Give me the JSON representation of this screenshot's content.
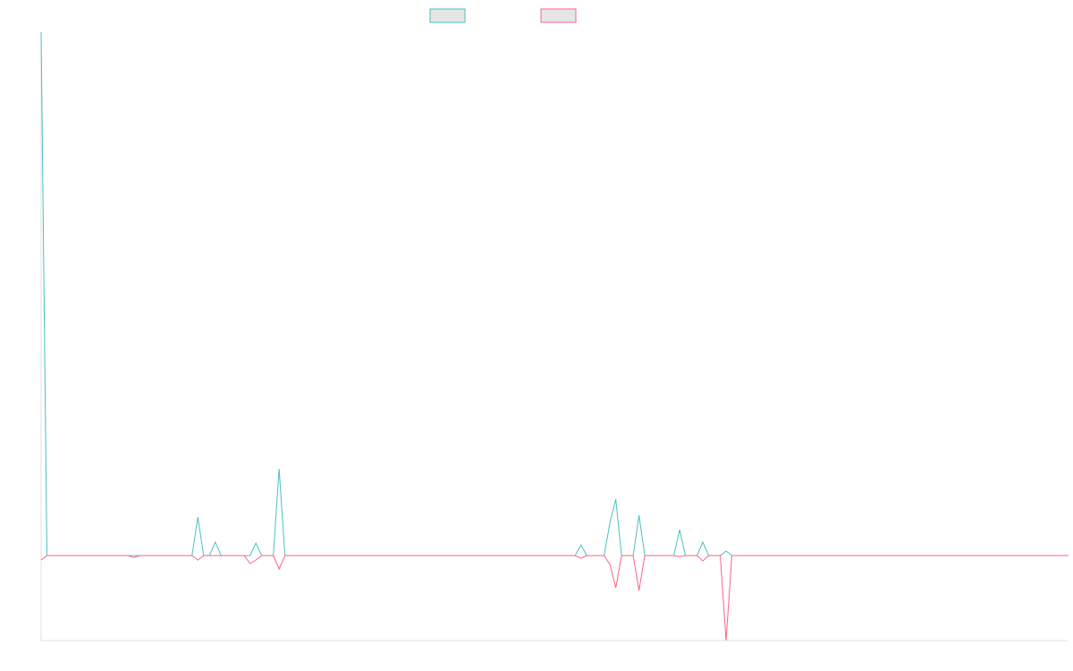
{
  "chart_data": {
    "type": "line",
    "series": [
      {
        "color": "#4bc0c0",
        "values": [
          585,
          0,
          0,
          0,
          0,
          0,
          0,
          0,
          0,
          0,
          0,
          0,
          0,
          0,
          0,
          0,
          0,
          0,
          0,
          0,
          0,
          0,
          0,
          0,
          0,
          0,
          0,
          43,
          0,
          0,
          15,
          0,
          0,
          0,
          0,
          0,
          0,
          14,
          0,
          0,
          0,
          97,
          0,
          0,
          0,
          0,
          0,
          0,
          0,
          0,
          0,
          0,
          0,
          0,
          0,
          0,
          0,
          0,
          0,
          0,
          0,
          0,
          0,
          0,
          0,
          0,
          0,
          0,
          0,
          0,
          0,
          0,
          0,
          0,
          0,
          0,
          0,
          0,
          0,
          0,
          0,
          0,
          0,
          0,
          0,
          0,
          0,
          0,
          0,
          0,
          0,
          0,
          0,
          12,
          0,
          0,
          0,
          0,
          37,
          63,
          0,
          0,
          0,
          45,
          0,
          0,
          0,
          0,
          0,
          0,
          29,
          0,
          0,
          0,
          15,
          0,
          0,
          0,
          5,
          0,
          0,
          0,
          0,
          0,
          0,
          0,
          0,
          0,
          0,
          0,
          0,
          0,
          0,
          0,
          0,
          0,
          0,
          0,
          0,
          0,
          0,
          0,
          0,
          0,
          0,
          0,
          0,
          0,
          0,
          0,
          0,
          0,
          0,
          0,
          0,
          0,
          0,
          0,
          0,
          0,
          0,
          0,
          0,
          0,
          0,
          0,
          0,
          0,
          0,
          0,
          0,
          0,
          0,
          0,
          0,
          0,
          0,
          0
        ]
      },
      {
        "color": "#ff6384",
        "values": [
          -5,
          0,
          0,
          0,
          0,
          0,
          0,
          0,
          0,
          0,
          0,
          0,
          0,
          0,
          0,
          0,
          -2,
          0,
          0,
          0,
          0,
          0,
          0,
          0,
          0,
          0,
          0,
          -5,
          0,
          0,
          0,
          0,
          0,
          0,
          0,
          0,
          -9,
          -5,
          0,
          0,
          0,
          -15,
          0,
          0,
          0,
          0,
          0,
          0,
          0,
          0,
          0,
          0,
          0,
          0,
          0,
          0,
          0,
          0,
          0,
          0,
          0,
          0,
          0,
          0,
          0,
          0,
          0,
          0,
          0,
          0,
          0,
          0,
          0,
          0,
          0,
          0,
          0,
          0,
          0,
          0,
          0,
          0,
          0,
          0,
          0,
          0,
          0,
          0,
          0,
          0,
          0,
          0,
          0,
          -3,
          0,
          0,
          0,
          0,
          -10,
          -36,
          0,
          0,
          0,
          -39,
          0,
          0,
          0,
          0,
          0,
          0,
          -1,
          0,
          0,
          0,
          -6,
          0,
          0,
          0,
          -95,
          0,
          0,
          0,
          0,
          0,
          0,
          0,
          0,
          0,
          0,
          0,
          0,
          0,
          0,
          0,
          0,
          0,
          0,
          0,
          0,
          0,
          0,
          0,
          0,
          0,
          0,
          0,
          0,
          0,
          0,
          0,
          0,
          0,
          0,
          0,
          0,
          0,
          0,
          0,
          0,
          0,
          0,
          0,
          0,
          0,
          0,
          0,
          0,
          0,
          0,
          0,
          0,
          0,
          0,
          0,
          0,
          0,
          0,
          0
        ]
      }
    ],
    "ylim": [
      -95,
      585
    ]
  }
}
